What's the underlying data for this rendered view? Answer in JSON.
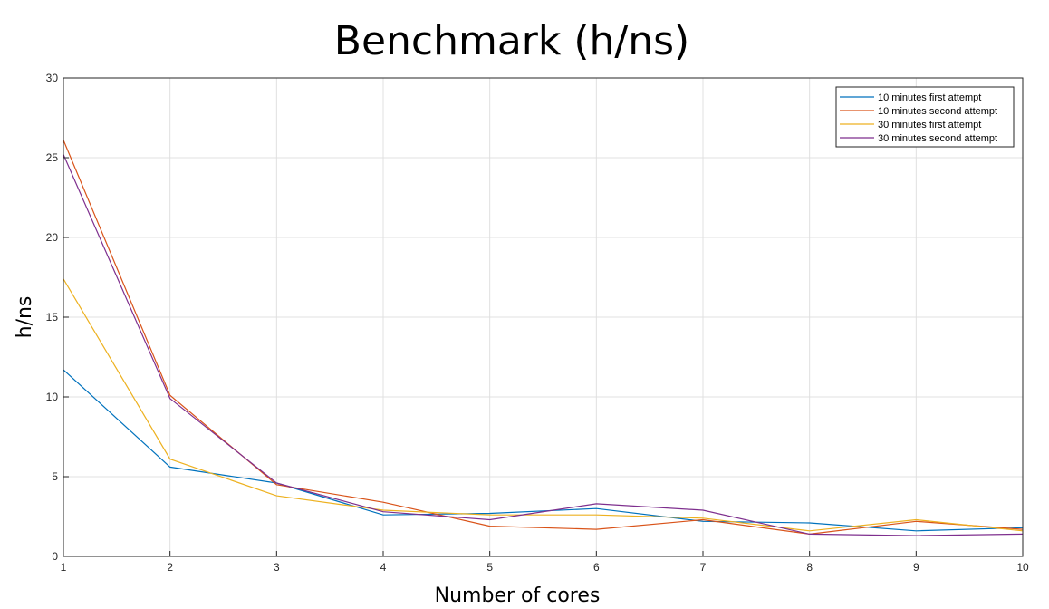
{
  "chart_data": {
    "type": "line",
    "title": "Benchmark (h/ns)",
    "xlabel": "Number of cores",
    "ylabel": "h/ns",
    "xlim": [
      1,
      10
    ],
    "ylim": [
      0,
      30
    ],
    "xticks": [
      1,
      2,
      3,
      4,
      5,
      6,
      7,
      8,
      9,
      10
    ],
    "yticks": [
      0,
      5,
      10,
      15,
      20,
      25,
      30
    ],
    "grid": true,
    "legend_position": "top-right",
    "x": [
      1,
      2,
      3,
      4,
      5,
      6,
      7,
      8,
      9,
      10
    ],
    "series": [
      {
        "name": "10 minutes first attempt",
        "color": "#0072BD",
        "values": [
          11.7,
          5.6,
          4.6,
          2.6,
          2.7,
          3.0,
          2.2,
          2.1,
          1.6,
          1.8
        ]
      },
      {
        "name": "10 minutes second attempt",
        "color": "#D95319",
        "values": [
          26.1,
          10.1,
          4.5,
          3.4,
          1.9,
          1.7,
          2.3,
          1.4,
          2.2,
          1.7
        ]
      },
      {
        "name": "30 minutes first attempt",
        "color": "#EDB120",
        "values": [
          17.4,
          6.1,
          3.8,
          2.9,
          2.6,
          2.6,
          2.4,
          1.6,
          2.3,
          1.6
        ]
      },
      {
        "name": "30 minutes second attempt",
        "color": "#7E2F8E",
        "values": [
          25.2,
          9.9,
          4.6,
          2.8,
          2.3,
          3.3,
          2.9,
          1.4,
          1.3,
          1.4
        ]
      }
    ]
  }
}
